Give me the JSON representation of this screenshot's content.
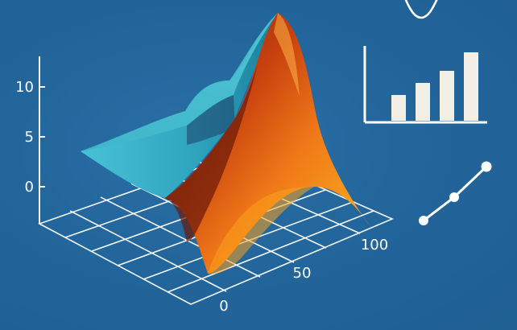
{
  "illustration": {
    "z_axis_ticks": [
      "0",
      "5",
      "10"
    ],
    "floor_axis_ticks": [
      "0",
      "50",
      "100"
    ],
    "colors": {
      "background": "#22659a",
      "surface_teal": "#3bb0c8",
      "surface_orange": "#e0651a",
      "surface_dark": "#6a1a0a",
      "line_white": "#ffffff",
      "bar_fill": "#f2efe6"
    },
    "icons": [
      "3d-surface-plot-icon",
      "bar-chart-icon",
      "line-chart-icon",
      "sine-wave-icon"
    ]
  }
}
